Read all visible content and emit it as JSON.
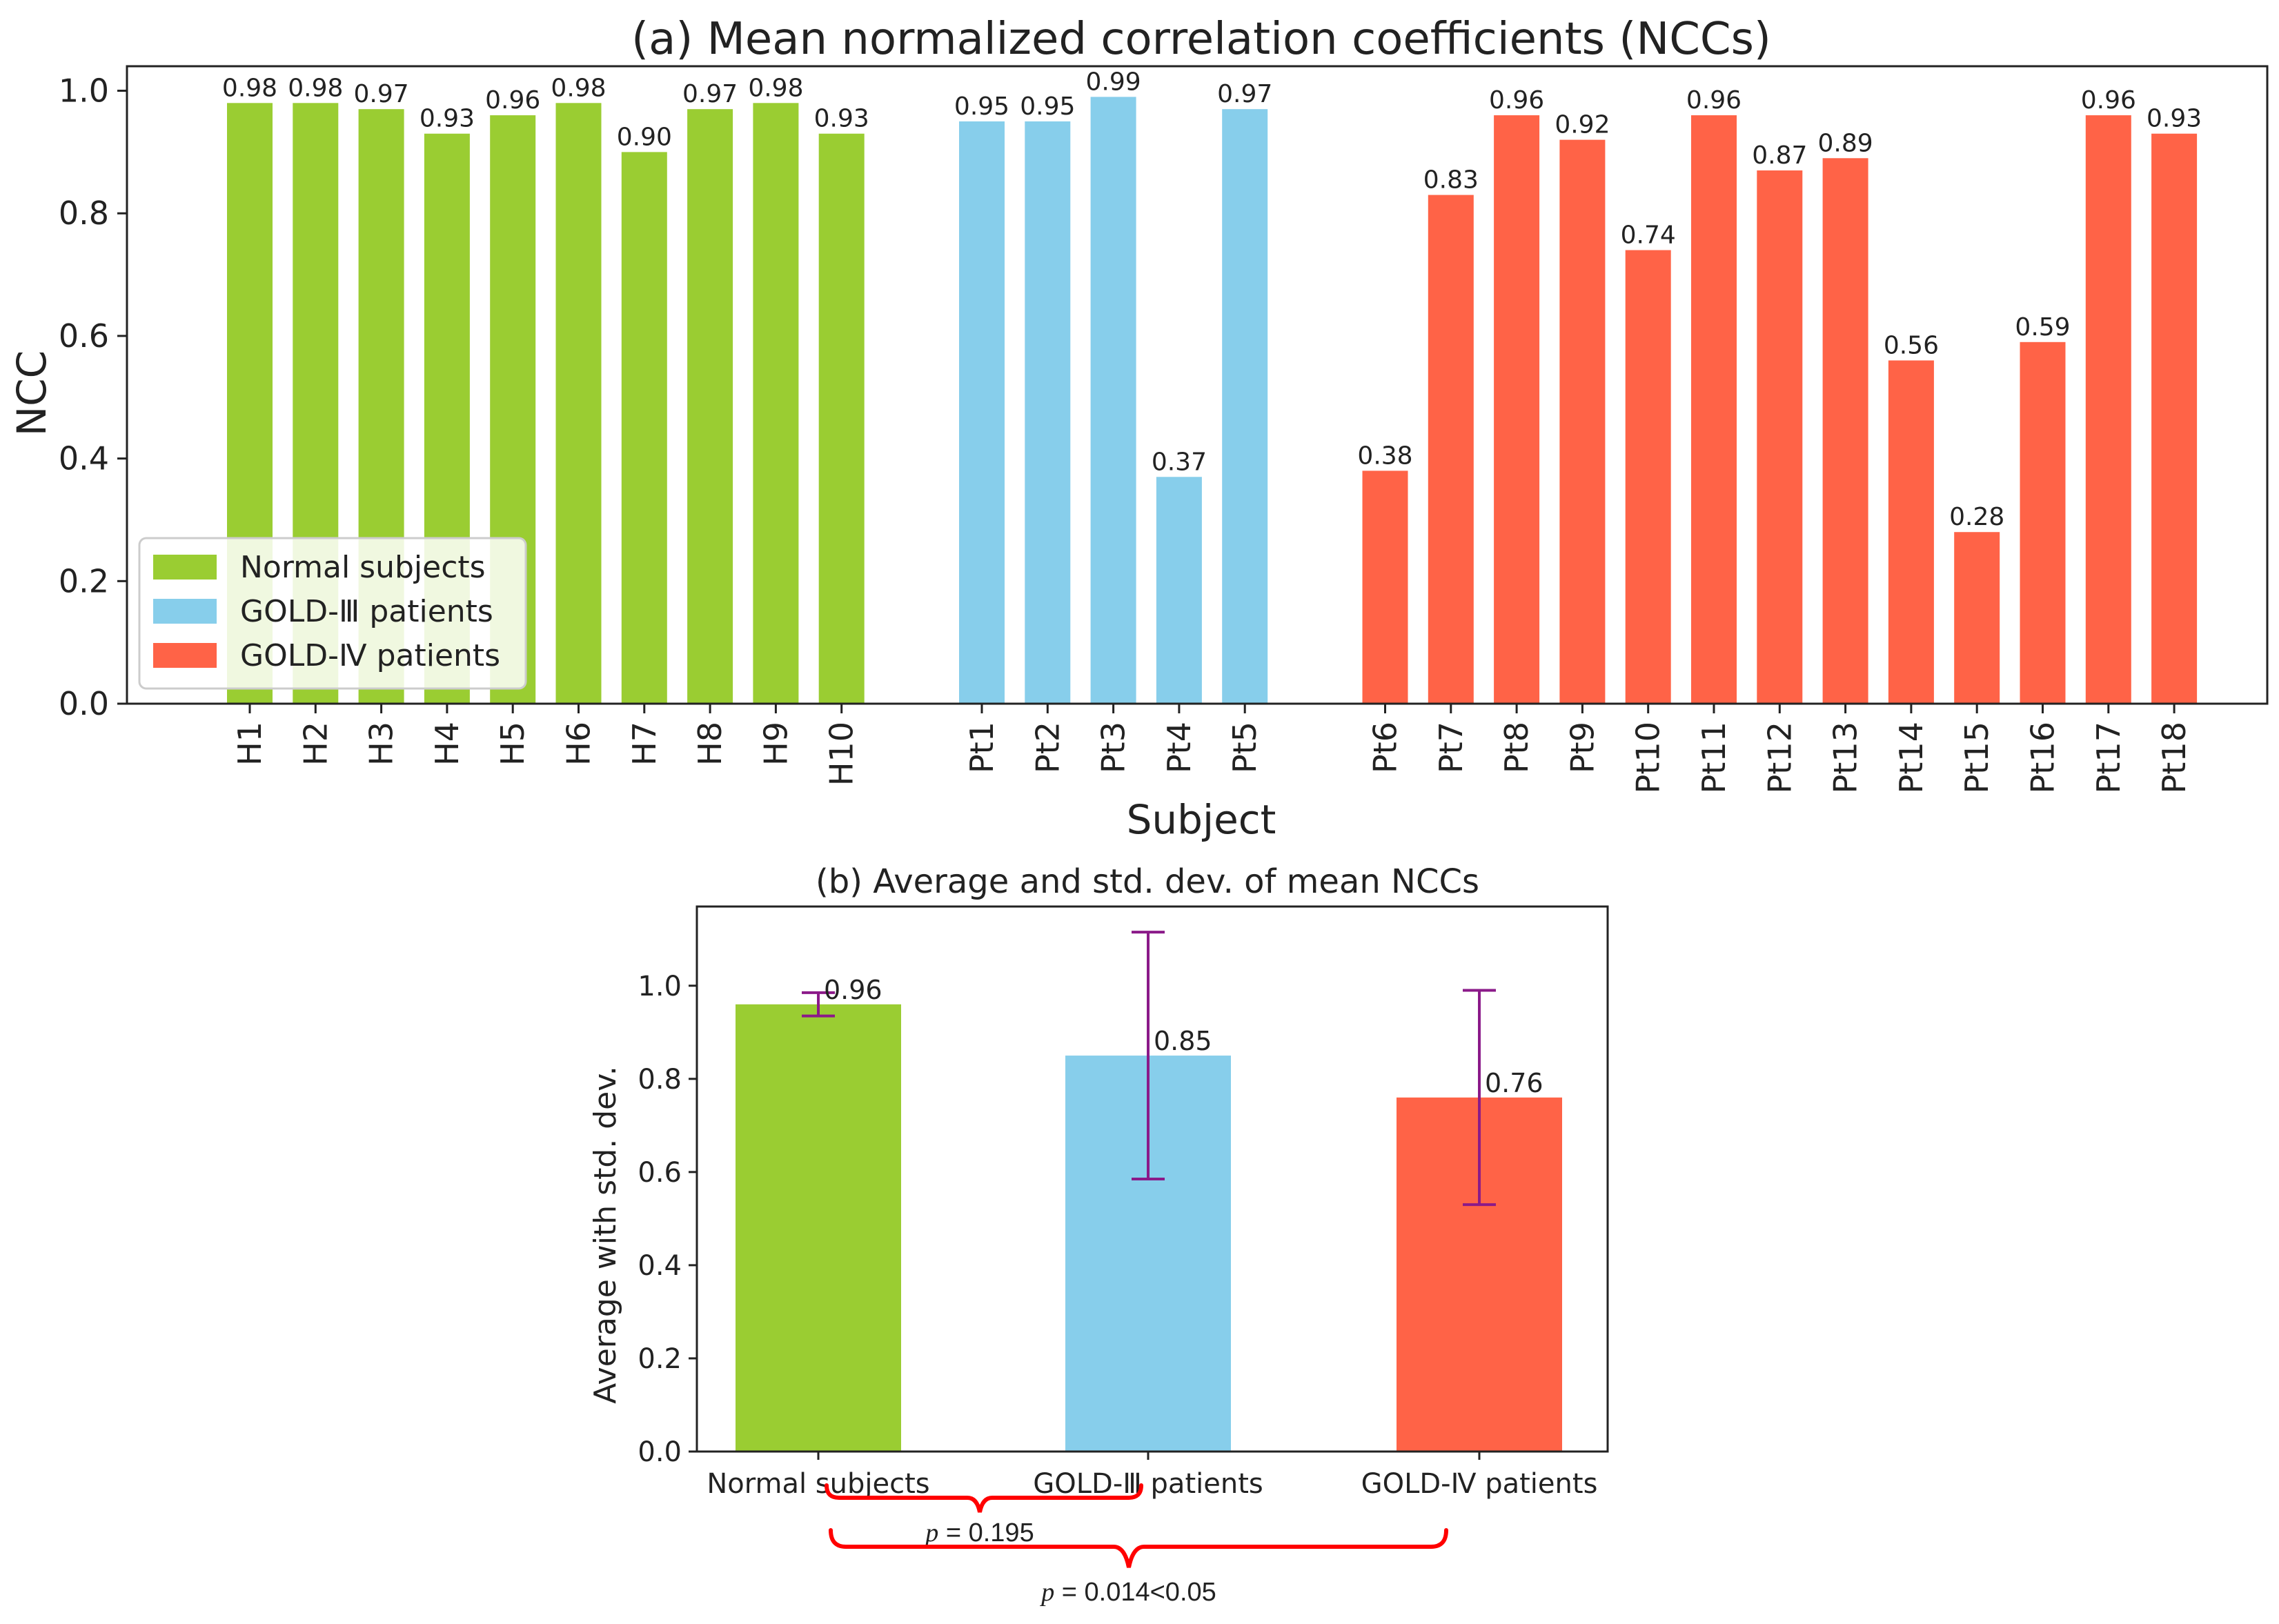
{
  "chart_data": [
    {
      "type": "bar",
      "title": "(a) Mean normalized correlation coefficients (NCCs)",
      "xlabel": "Subject",
      "ylabel": "NCC",
      "ylim": [
        0,
        1.04
      ],
      "yticks": [
        "0.0",
        "0.2",
        "0.4",
        "0.6",
        "0.8",
        "1.0"
      ],
      "grid": false,
      "legend_position": "bottom-left",
      "groups": [
        {
          "name": "Normal subjects",
          "color": "#9ACD32",
          "categories": [
            "H1",
            "H2",
            "H3",
            "H4",
            "H5",
            "H6",
            "H7",
            "H8",
            "H9",
            "H10"
          ],
          "values": [
            0.98,
            0.98,
            0.97,
            0.93,
            0.96,
            0.98,
            0.9,
            0.97,
            0.98,
            0.93
          ],
          "labels": [
            "0.98",
            "0.98",
            "0.97",
            "0.93",
            "0.96",
            "0.98",
            "0.90",
            "0.97",
            "0.98",
            "0.93"
          ]
        },
        {
          "name": "GOLD-Ⅲ patients",
          "color": "#87CEEB",
          "categories": [
            "Pt1",
            "Pt2",
            "Pt3",
            "Pt4",
            "Pt5"
          ],
          "values": [
            0.95,
            0.95,
            0.99,
            0.37,
            0.97
          ],
          "labels": [
            "0.95",
            "0.95",
            "0.99",
            "0.37",
            "0.97"
          ]
        },
        {
          "name": "GOLD-Ⅳ patients",
          "color": "#FF6347",
          "categories": [
            "Pt6",
            "Pt7",
            "Pt8",
            "Pt9",
            "Pt10",
            "Pt11",
            "Pt12",
            "Pt13",
            "Pt14",
            "Pt15",
            "Pt16",
            "Pt17",
            "Pt18"
          ],
          "values": [
            0.38,
            0.83,
            0.96,
            0.92,
            0.74,
            0.96,
            0.87,
            0.89,
            0.56,
            0.28,
            0.59,
            0.96,
            0.93
          ],
          "labels": [
            "0.38",
            "0.83",
            "0.96",
            "0.92",
            "0.74",
            "0.96",
            "0.87",
            "0.89",
            "0.56",
            "0.28",
            "0.59",
            "0.96",
            "0.93"
          ]
        }
      ]
    },
    {
      "type": "bar",
      "title": "(b) Average and std. dev. of mean NCCs",
      "xlabel": "",
      "ylabel": "Average with std. dev.",
      "ylim": [
        0,
        1.17
      ],
      "yticks": [
        "0.0",
        "0.2",
        "0.4",
        "0.6",
        "0.8",
        "1.0"
      ],
      "grid": false,
      "categories": [
        "Normal subjects",
        "GOLD-Ⅲ patients",
        "GOLD-Ⅳ patients"
      ],
      "values": [
        0.96,
        0.85,
        0.76
      ],
      "labels": [
        "0.96",
        "0.85",
        "0.76"
      ],
      "std": [
        0.025,
        0.265,
        0.23
      ],
      "colors": [
        "#9ACD32",
        "#87CEEB",
        "#FF6347"
      ],
      "error_color": "#8B1A89",
      "annotations": [
        {
          "from": "Normal subjects",
          "to": "GOLD-Ⅲ patients",
          "p_symbol": "p",
          "text": " = 0.195"
        },
        {
          "from": "Normal subjects",
          "to": "GOLD-Ⅳ patients",
          "p_symbol": "p",
          "text": " = 0.014<0.05"
        }
      ],
      "brace_color": "#FF0000"
    }
  ]
}
